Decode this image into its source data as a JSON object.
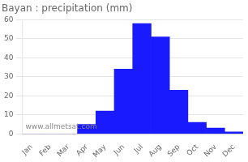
{
  "chart_data": {
    "type": "bar",
    "title": "Bayan : precipitation (mm)",
    "categories": [
      "Jan",
      "Feb",
      "Mar",
      "Apr",
      "May",
      "Jun",
      "Jul",
      "Aug",
      "Sep",
      "Oct",
      "Nov",
      "Dec"
    ],
    "values": [
      0,
      0,
      0,
      5,
      12,
      34,
      58,
      51,
      23,
      6,
      3,
      1
    ],
    "color": "#1a1aff",
    "ylim": [
      0,
      60
    ],
    "yticks": [
      0,
      10,
      20,
      30,
      40,
      50,
      60
    ],
    "grid": true,
    "annotations": [
      "www.allmetsat.com"
    ]
  }
}
